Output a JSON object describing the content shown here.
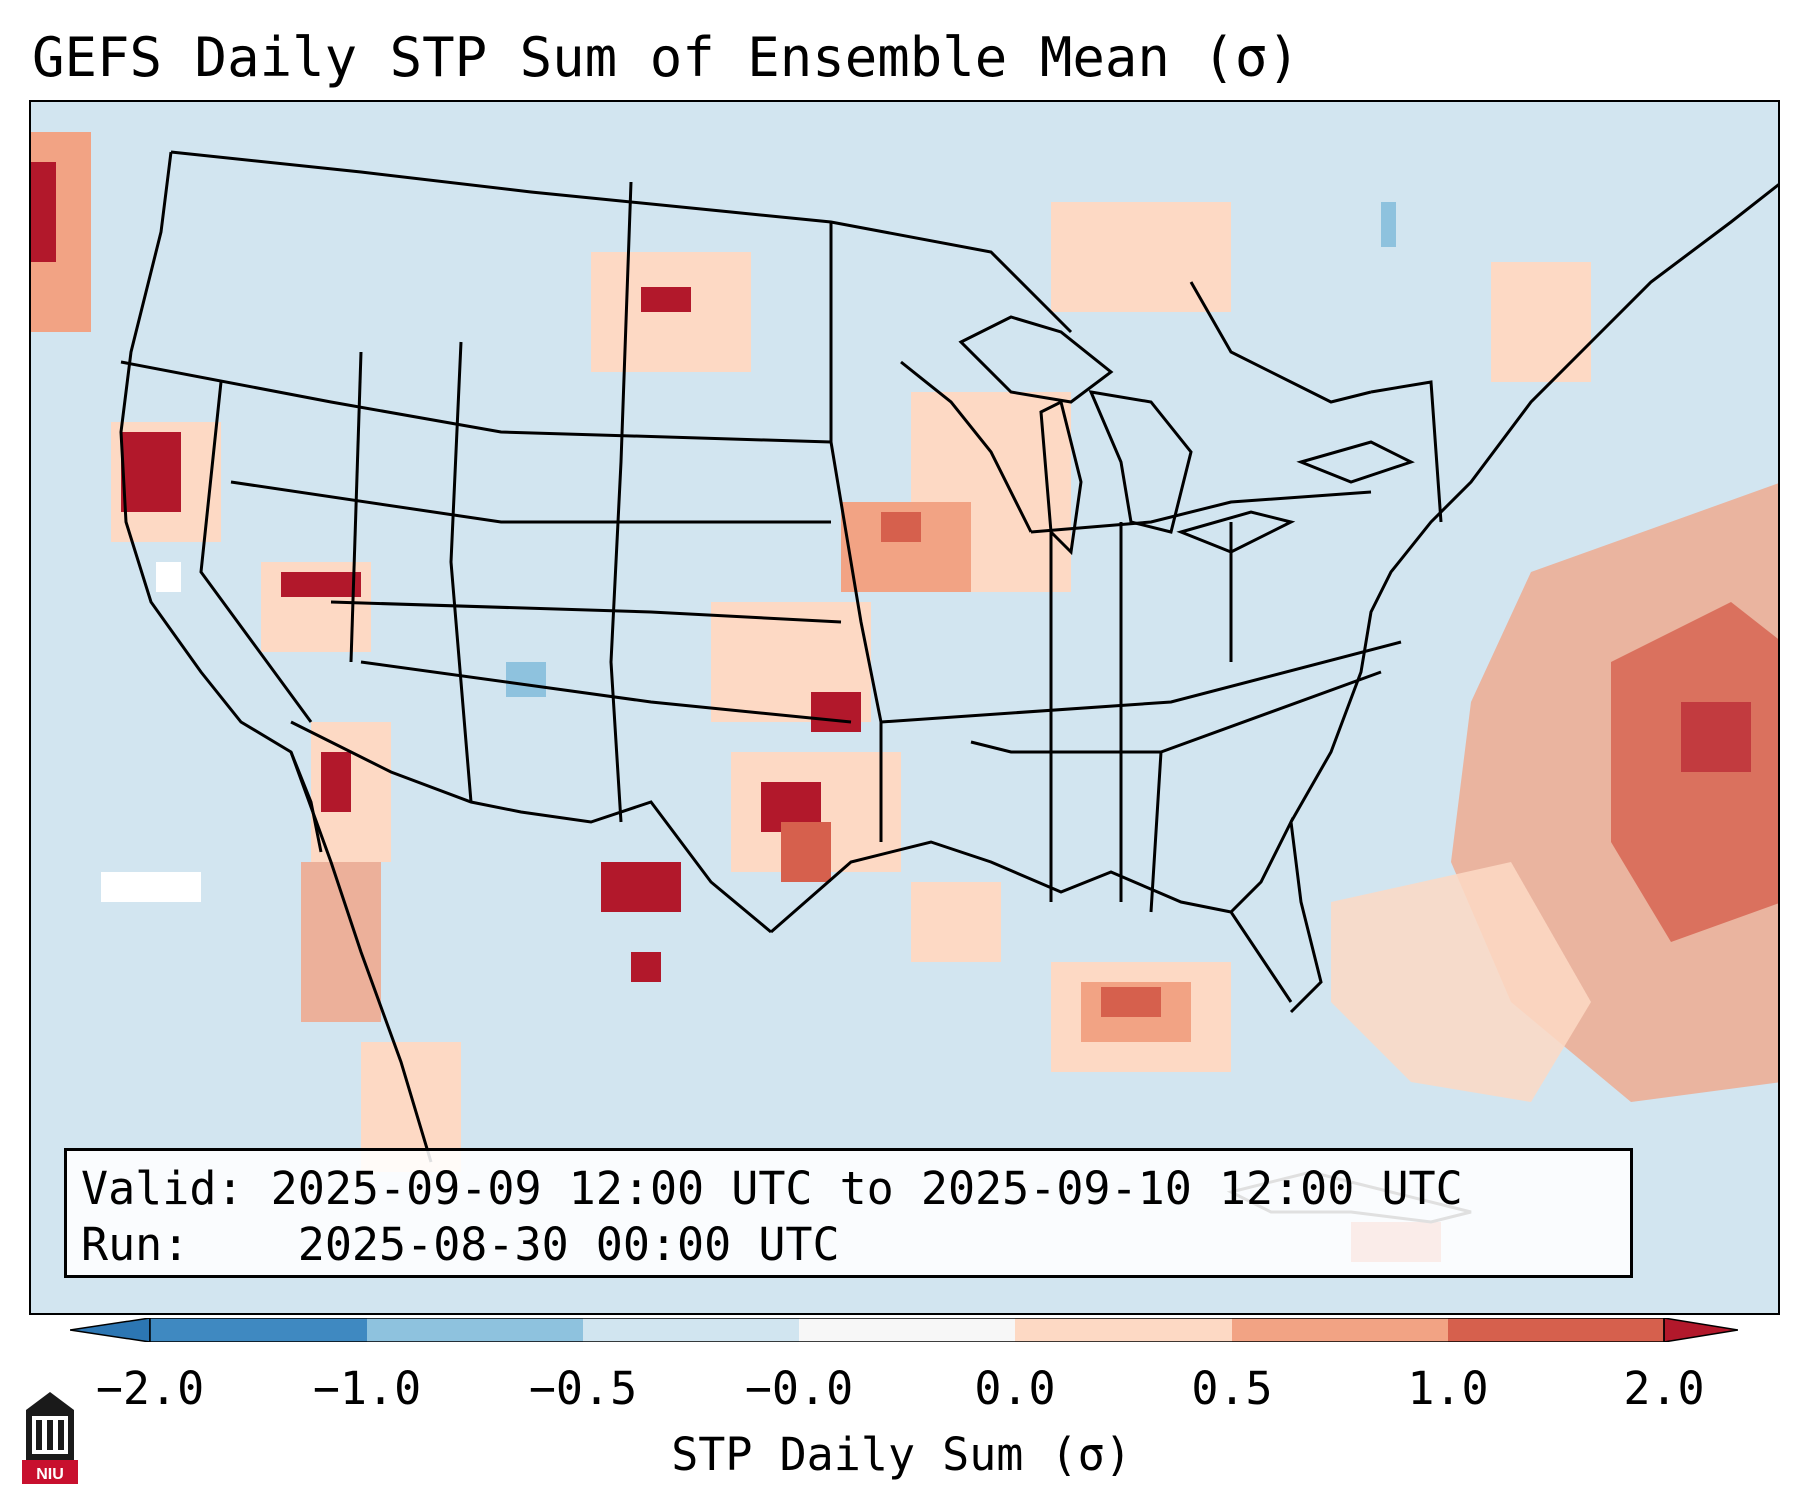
{
  "title": "GEFS Daily STP Sum of Ensemble Mean (σ)",
  "info": {
    "valid_label": "Valid:",
    "valid_range": "2025-09-09 12:00 UTC to 2025-09-10 12:00 UTC",
    "run_label": "Run:",
    "run_time": "2025-08-30 00:00 UTC"
  },
  "colorbar": {
    "label": "STP Daily Sum (σ)",
    "ticks": [
      "−2.0",
      "−1.0",
      "−0.5",
      "−0.0",
      "0.0",
      "0.5",
      "1.0",
      "2.0"
    ],
    "bin_colors": [
      "#3f89c1",
      "#8ec2de",
      "#d1e5f0",
      "#f7f7f7",
      "#fdd9c4",
      "#f2a384",
      "#d6604d",
      "#b2182b"
    ],
    "ext_low_color": "#2c76b3",
    "ext_high_color": "#b2182b"
  },
  "map": {
    "background_color": "#d2e5f0",
    "region": "Continental United States, northern Mexico and western Atlantic"
  },
  "logo": {
    "text": "NIU"
  }
}
